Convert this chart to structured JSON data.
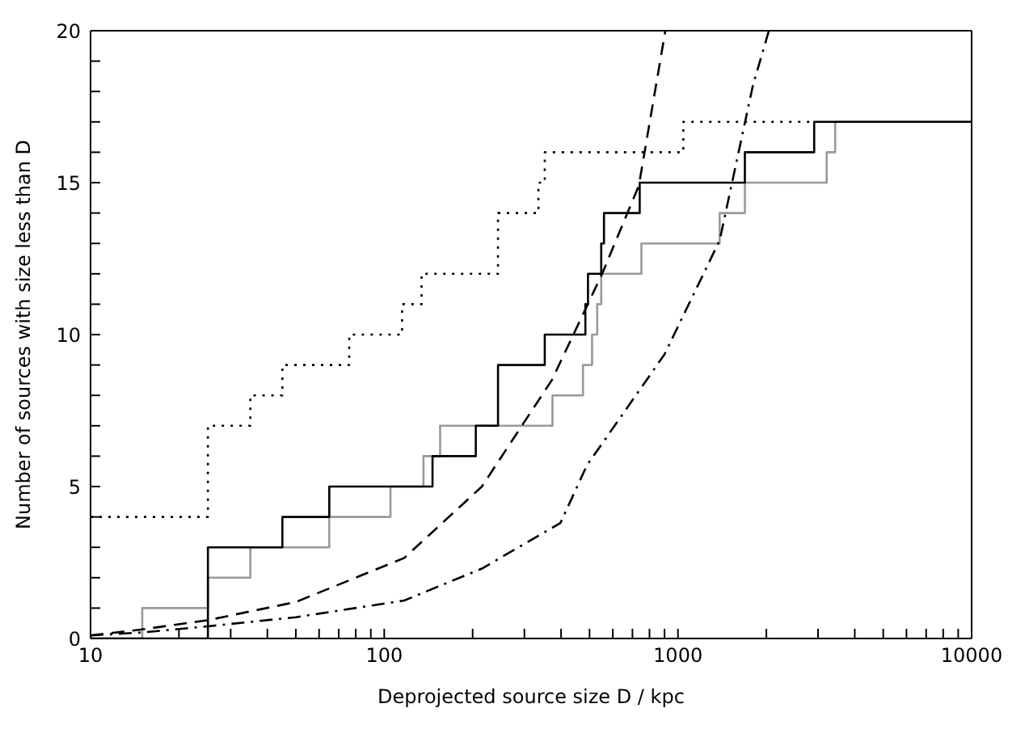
{
  "chart_data": {
    "type": "line",
    "xlabel": "Deprojected source size D / kpc",
    "ylabel": "Number of sources with size less than D",
    "log": "x",
    "marker": "none",
    "xlim": [
      10,
      10000
    ],
    "xticks": [
      10,
      {
        "value": 20,
        "label": null
      },
      {
        "value": 30,
        "label": null
      },
      {
        "value": 40,
        "label": null
      },
      {
        "value": 50,
        "label": null
      },
      {
        "value": 60,
        "label": null
      },
      {
        "value": 70,
        "label": null
      },
      {
        "value": 80,
        "label": null
      },
      {
        "value": 90,
        "label": null
      },
      100,
      {
        "value": 200,
        "label": null
      },
      {
        "value": 300,
        "label": null
      },
      {
        "value": 400,
        "label": null
      },
      {
        "value": 500,
        "label": null
      },
      {
        "value": 600,
        "label": null
      },
      {
        "value": 700,
        "label": null
      },
      {
        "value": 800,
        "label": null
      },
      {
        "value": 900,
        "label": null
      },
      1000,
      {
        "value": 2000,
        "label": null
      },
      {
        "value": 3000,
        "label": null
      },
      {
        "value": 4000,
        "label": null
      },
      {
        "value": 5000,
        "label": null
      },
      {
        "value": 6000,
        "label": null
      },
      {
        "value": 7000,
        "label": null
      },
      {
        "value": 8000,
        "label": null
      },
      {
        "value": 9000,
        "label": null
      },
      10000
    ],
    "ylim": [
      0,
      20
    ],
    "yticks": [
      0,
      {
        "value": 1,
        "label": null
      },
      {
        "value": 2,
        "label": null
      },
      {
        "value": 3,
        "label": null
      },
      {
        "value": 4,
        "label": null
      },
      5,
      {
        "value": 6,
        "label": null
      },
      {
        "value": 7,
        "label": null
      },
      {
        "value": 8,
        "label": null
      },
      {
        "value": 9,
        "label": null
      },
      10,
      {
        "value": 11,
        "label": null
      },
      {
        "value": 12,
        "label": null
      },
      {
        "value": 13,
        "label": null
      },
      {
        "value": 14,
        "label": null
      },
      15,
      {
        "value": 16,
        "label": null
      },
      {
        "value": 17,
        "label": null
      },
      {
        "value": 18,
        "label": null
      },
      {
        "value": 19,
        "label": null
      },
      20
    ],
    "series": [
      {
        "type": "step",
        "color": "#999999",
        "line_style": "solid",
        "x": [
          10,
          15,
          25.1,
          35,
          65,
          105,
          136,
          155,
          374,
          475,
          510,
          531,
          548,
          751,
          1387,
          1690,
          3210,
          3430,
          10000
        ],
        "values": [
          0,
          1,
          2,
          3,
          4,
          5,
          6,
          7,
          8,
          9,
          10,
          11,
          12,
          13,
          14,
          15,
          16,
          17,
          17
        ]
      },
      {
        "type": "step",
        "color": "#000000",
        "line_style": "dotted",
        "x": [
          10,
          25.1,
          35,
          45,
          76,
          115,
          134,
          244,
          335,
          352,
          1043,
          2910
        ],
        "values": [
          4,
          7,
          8,
          9,
          10,
          11,
          12,
          14,
          15,
          16,
          17,
          17
        ]
      },
      {
        "type": "step",
        "color": "#000000",
        "line_style": "solid",
        "x": [
          10,
          25.1,
          45,
          65,
          146,
          205,
          244,
          352,
          484,
          494,
          548,
          560,
          741,
          1690,
          2910,
          10000
        ],
        "values": [
          0,
          3,
          4,
          5,
          6,
          7,
          9,
          10,
          11,
          12,
          13,
          14,
          15,
          16,
          17,
          17
        ]
      },
      {
        "type": "line",
        "color": "#000000",
        "line_style": "dashed",
        "x": [
          10,
          15,
          25,
          50,
          117,
          215,
          372,
          552,
          736,
          906
        ],
        "values": [
          0.1,
          0.3,
          0.6,
          1.2,
          2.65,
          5,
          8.5,
          12,
          14.9,
          20
        ]
      },
      {
        "type": "line",
        "color": "#000000",
        "line_style": "dashdot",
        "x": [
          10,
          15,
          25,
          50,
          117,
          215,
          398,
          490,
          900,
          1387,
          1800,
          2040
        ],
        "values": [
          0.1,
          0.2,
          0.4,
          0.7,
          1.25,
          2.3,
          3.8,
          5.7,
          9.35,
          13.1,
          18.2,
          20
        ]
      }
    ]
  }
}
